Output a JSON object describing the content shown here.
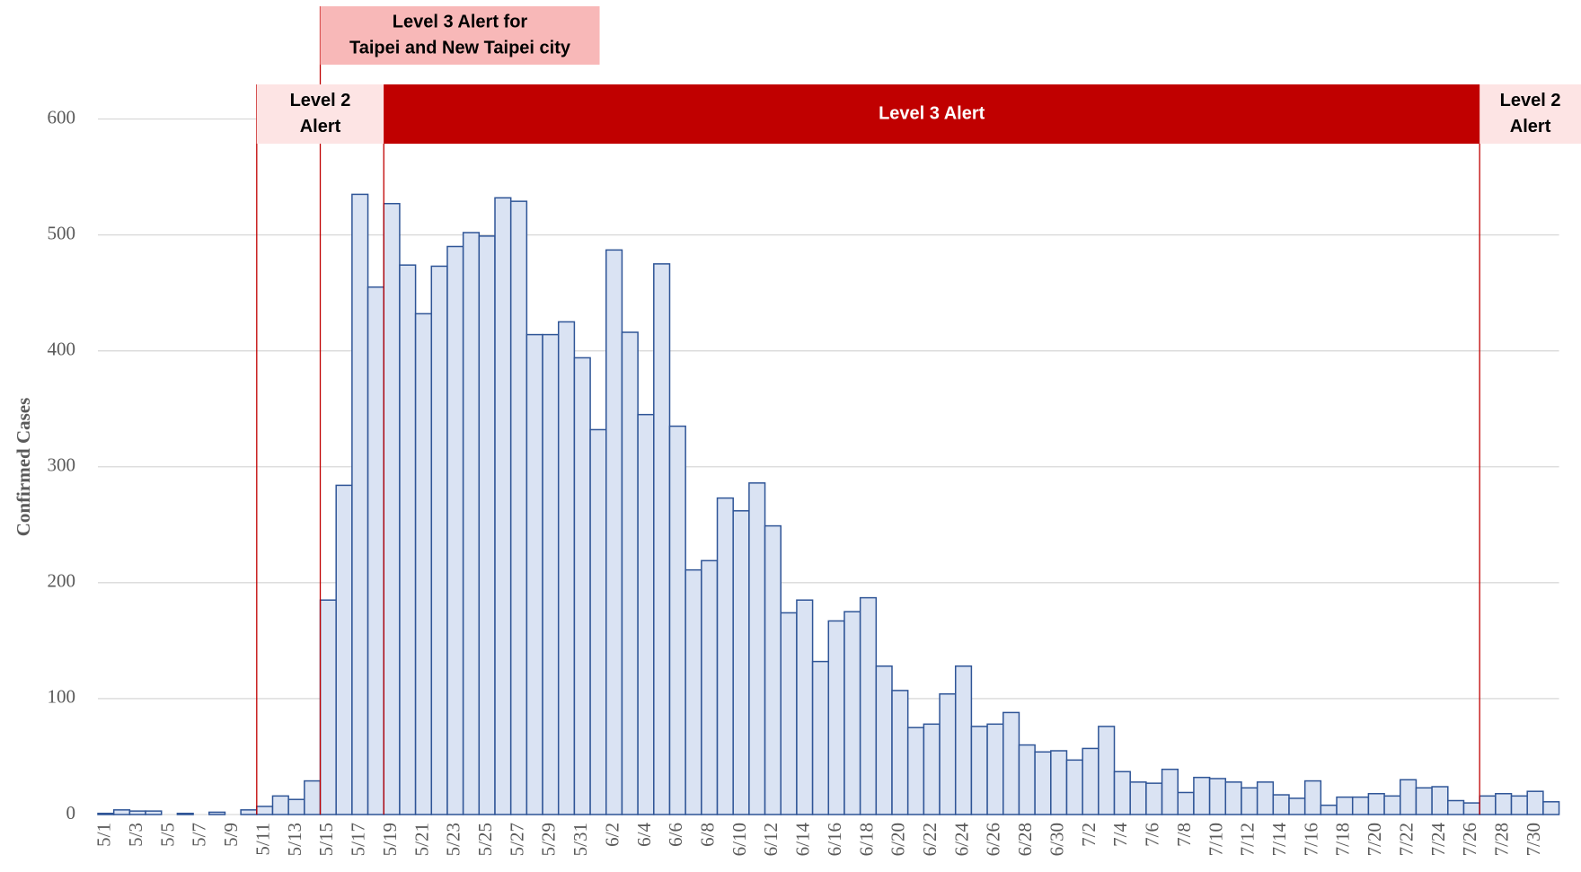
{
  "chart_data": {
    "type": "bar",
    "y_label": "Confirmed Cases",
    "categories": [
      "5/1",
      null,
      "5/3",
      null,
      "5/5",
      null,
      "5/7",
      null,
      "5/9",
      null,
      "5/11",
      null,
      "5/13",
      null,
      "5/15",
      null,
      "5/17",
      null,
      "5/19",
      null,
      "5/21",
      null,
      "5/23",
      null,
      "5/25",
      null,
      "5/27",
      null,
      "5/29",
      null,
      "5/31",
      null,
      "6/2",
      null,
      "6/4",
      null,
      "6/6",
      null,
      "6/8",
      null,
      "6/10",
      null,
      "6/12",
      null,
      "6/14",
      null,
      "6/16",
      null,
      "6/18",
      null,
      "6/20",
      null,
      "6/22",
      null,
      "6/24",
      null,
      "6/26",
      null,
      "6/28",
      null,
      "6/30",
      null,
      "7/2",
      null,
      "7/4",
      null,
      "7/6",
      null,
      "7/8",
      null,
      "7/10",
      null,
      "7/12",
      null,
      "7/14",
      null,
      "7/16",
      null,
      "7/18",
      null,
      "7/20",
      null,
      "7/22",
      null,
      "7/24",
      null,
      "7/26",
      null,
      "7/28",
      null,
      "7/30",
      null
    ],
    "values": [
      1,
      4,
      3,
      3,
      0,
      1,
      0,
      2,
      0,
      4,
      7,
      16,
      13,
      29,
      185,
      284,
      535,
      455,
      527,
      474,
      432,
      473,
      490,
      502,
      499,
      532,
      529,
      414,
      414,
      425,
      394,
      332,
      487,
      416,
      345,
      475,
      335,
      211,
      219,
      273,
      262,
      286,
      249,
      174,
      185,
      132,
      167,
      175,
      187,
      128,
      107,
      75,
      78,
      104,
      128,
      76,
      78,
      88,
      60,
      54,
      55,
      47,
      57,
      76,
      37,
      28,
      27,
      39,
      19,
      32,
      31,
      28,
      23,
      28,
      17,
      14,
      29,
      8,
      15,
      15,
      18,
      16,
      30,
      23,
      24,
      12,
      10,
      16,
      18,
      16,
      20,
      11
    ],
    "color": "#dae3f3",
    "edge_color": "#2f5597",
    "ylim": [
      0,
      600
    ],
    "yticks": [
      0,
      100,
      200,
      300,
      400,
      500,
      600
    ],
    "grid": true,
    "annotations": [
      {
        "lines": [
          "Level 3 Alert for",
          "Taipei and New Taipei city"
        ],
        "color": "#f8b8b8"
      },
      {
        "lines": [
          "Level 2",
          "Alert"
        ],
        "color": "#fde4e4"
      },
      {
        "lines": [
          "Level 3 Alert"
        ],
        "color": "#c00000"
      },
      {
        "lines": [
          "Level 2",
          "Alert"
        ],
        "color": "#fde4e4"
      }
    ]
  }
}
